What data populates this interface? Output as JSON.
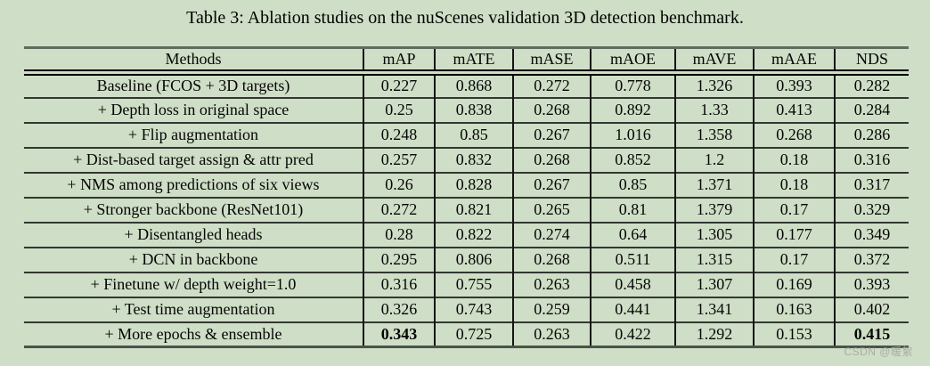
{
  "caption": "Table 3: Ablation studies on the nuScenes validation 3D detection benchmark.",
  "watermark": "CSDN @暖絮",
  "colors": {
    "background": "#cfdec6",
    "top_rule": "#5f6d61",
    "grid_line": "#151515",
    "text": "#050505"
  },
  "table": {
    "columns": [
      "Methods",
      "mAP",
      "mATE",
      "mASE",
      "mAOE",
      "mAVE",
      "mAAE",
      "NDS"
    ],
    "rows": [
      {
        "method": "Baseline (FCOS + 3D targets)",
        "values": [
          "0.227",
          "0.868",
          "0.272",
          "0.778",
          "1.326",
          "0.393",
          "0.282"
        ],
        "bold_value_indexes": []
      },
      {
        "method": "+ Depth loss in original space",
        "values": [
          "0.25",
          "0.838",
          "0.268",
          "0.892",
          "1.33",
          "0.413",
          "0.284"
        ],
        "bold_value_indexes": []
      },
      {
        "method": "+ Flip augmentation",
        "values": [
          "0.248",
          "0.85",
          "0.267",
          "1.016",
          "1.358",
          "0.268",
          "0.286"
        ],
        "bold_value_indexes": []
      },
      {
        "method": "+ Dist-based target assign & attr pred",
        "values": [
          "0.257",
          "0.832",
          "0.268",
          "0.852",
          "1.2",
          "0.18",
          "0.316"
        ],
        "bold_value_indexes": []
      },
      {
        "method": "+ NMS among predictions of six views",
        "values": [
          "0.26",
          "0.828",
          "0.267",
          "0.85",
          "1.371",
          "0.18",
          "0.317"
        ],
        "bold_value_indexes": []
      },
      {
        "method": "+ Stronger backbone (ResNet101)",
        "values": [
          "0.272",
          "0.821",
          "0.265",
          "0.81",
          "1.379",
          "0.17",
          "0.329"
        ],
        "bold_value_indexes": []
      },
      {
        "method": "+ Disentangled heads",
        "values": [
          "0.28",
          "0.822",
          "0.274",
          "0.64",
          "1.305",
          "0.177",
          "0.349"
        ],
        "bold_value_indexes": []
      },
      {
        "method": "+ DCN in backbone",
        "values": [
          "0.295",
          "0.806",
          "0.268",
          "0.511",
          "1.315",
          "0.17",
          "0.372"
        ],
        "bold_value_indexes": []
      },
      {
        "method": "+ Finetune w/ depth weight=1.0",
        "values": [
          "0.316",
          "0.755",
          "0.263",
          "0.458",
          "1.307",
          "0.169",
          "0.393"
        ],
        "bold_value_indexes": []
      },
      {
        "method": "+ Test time augmentation",
        "values": [
          "0.326",
          "0.743",
          "0.259",
          "0.441",
          "1.341",
          "0.163",
          "0.402"
        ],
        "bold_value_indexes": []
      },
      {
        "method": "+ More epochs & ensemble",
        "values": [
          "0.343",
          "0.725",
          "0.263",
          "0.422",
          "1.292",
          "0.153",
          "0.415"
        ],
        "bold_value_indexes": [
          0,
          6
        ]
      }
    ]
  }
}
